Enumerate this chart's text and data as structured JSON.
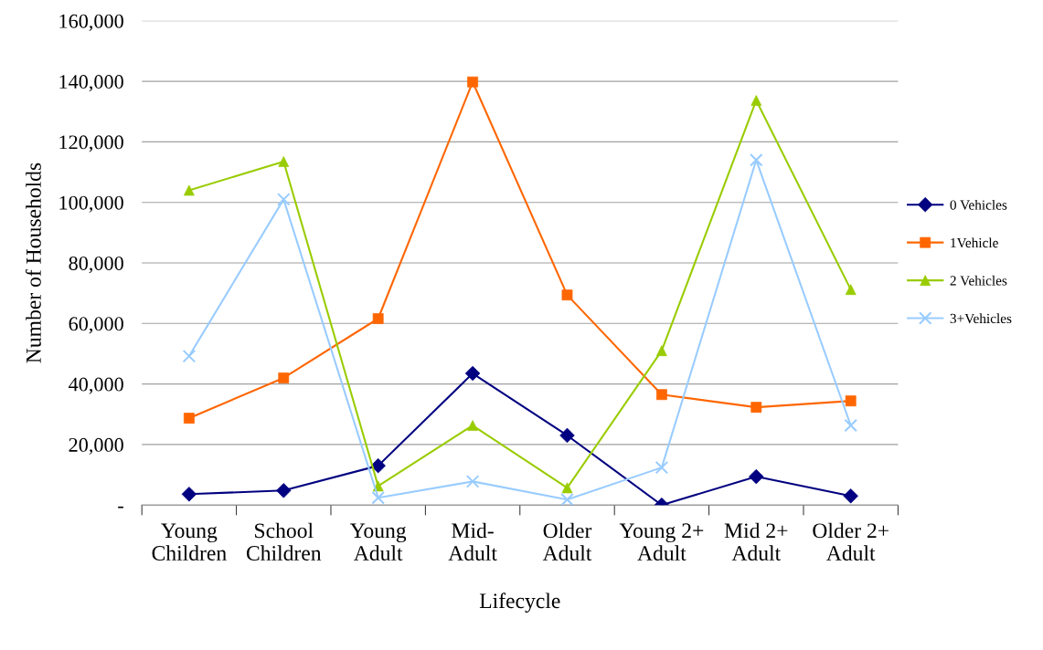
{
  "chart_data": {
    "type": "line",
    "xlabel": "Lifecycle",
    "ylabel": "Number of Households",
    "categories": [
      "Young\nChildren",
      "School\nChildren",
      "Young\nAdult",
      "Mid-\nAdult",
      "Older\nAdult",
      "Young 2+\nAdult",
      "Mid 2+\nAdult",
      "Older 2+\nAdult"
    ],
    "series": [
      {
        "name": "0 Vehicles",
        "color": "#000080",
        "marker": "diamond",
        "values": [
          3600,
          4800,
          13000,
          43500,
          23000,
          0,
          9400,
          3000
        ]
      },
      {
        "name": "1Vehicle",
        "color": "#ff6600",
        "marker": "square",
        "values": [
          28700,
          42000,
          61600,
          139800,
          69400,
          36500,
          32300,
          34400
        ]
      },
      {
        "name": "2 Vehicles",
        "color": "#99cc00",
        "marker": "triangle",
        "values": [
          104000,
          113500,
          6300,
          26300,
          5700,
          51000,
          133700,
          71200
        ]
      },
      {
        "name": "3+Vehicles",
        "color": "#99ccff",
        "marker": "cross",
        "values": [
          49200,
          101000,
          2400,
          7800,
          1800,
          12400,
          114000,
          26300
        ]
      }
    ],
    "ylim": [
      0,
      160000
    ],
    "yticks": [
      {
        "value": 0,
        "label": "-"
      },
      {
        "value": 20000,
        "label": "20,000"
      },
      {
        "value": 40000,
        "label": "40,000"
      },
      {
        "value": 60000,
        "label": "60,000"
      },
      {
        "value": 80000,
        "label": "80,000"
      },
      {
        "value": 100000,
        "label": "100,000"
      },
      {
        "value": 120000,
        "label": "120,000"
      },
      {
        "value": 140000,
        "label": "140,000"
      },
      {
        "value": 160000,
        "label": "160,000"
      }
    ],
    "grid": "y",
    "legend": "right"
  }
}
